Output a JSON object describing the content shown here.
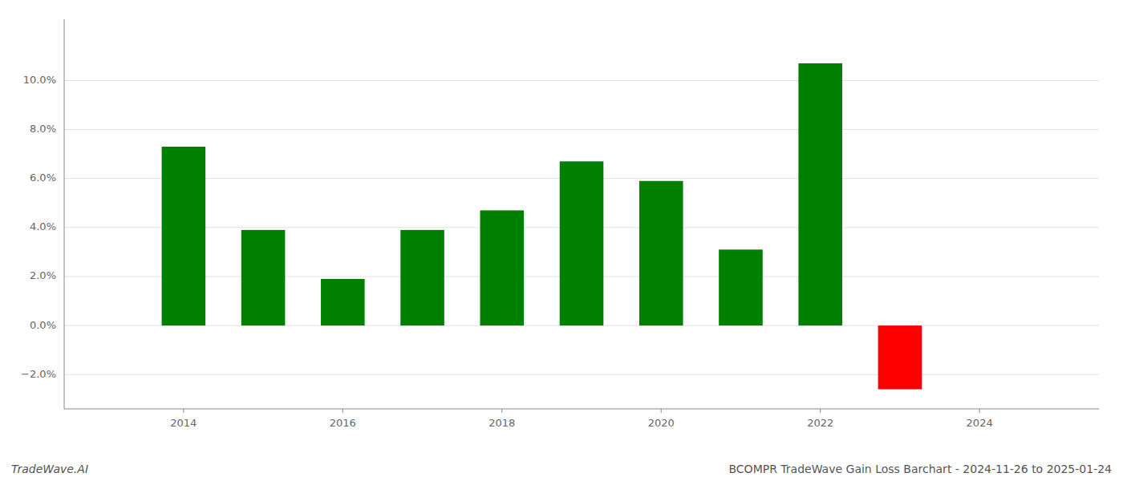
{
  "chart_data": {
    "type": "bar",
    "title": "BCOMPR TradeWave Gain Loss Barchart - 2024-11-26 to 2025-01-24",
    "annotations": [
      "TradeWave.AI"
    ],
    "x": [
      2014,
      2015,
      2016,
      2017,
      2018,
      2019,
      2020,
      2021,
      2022,
      2023
    ],
    "values": [
      0.073,
      0.039,
      0.019,
      0.039,
      0.047,
      0.067,
      0.059,
      0.031,
      0.107,
      -0.026
    ],
    "colors": [
      "#008000",
      "#008000",
      "#008000",
      "#008000",
      "#008000",
      "#008000",
      "#008000",
      "#008000",
      "#008000",
      "#ff0000"
    ],
    "xlim": [
      2012.5,
      2025.5
    ],
    "xticks": [
      2014,
      2016,
      2018,
      2020,
      2022,
      2024
    ],
    "ylim": [
      -0.034,
      0.125
    ],
    "yticks": [
      {
        "value": -0.02,
        "label": "−2.0%"
      },
      {
        "value": 0.0,
        "label": "0.0%"
      },
      {
        "value": 0.02,
        "label": "2.0%"
      },
      {
        "value": 0.04,
        "label": "4.0%"
      },
      {
        "value": 0.06,
        "label": "6.0%"
      },
      {
        "value": 0.08,
        "label": "8.0%"
      },
      {
        "value": 0.1,
        "label": "10.0%"
      }
    ],
    "grid": true
  }
}
